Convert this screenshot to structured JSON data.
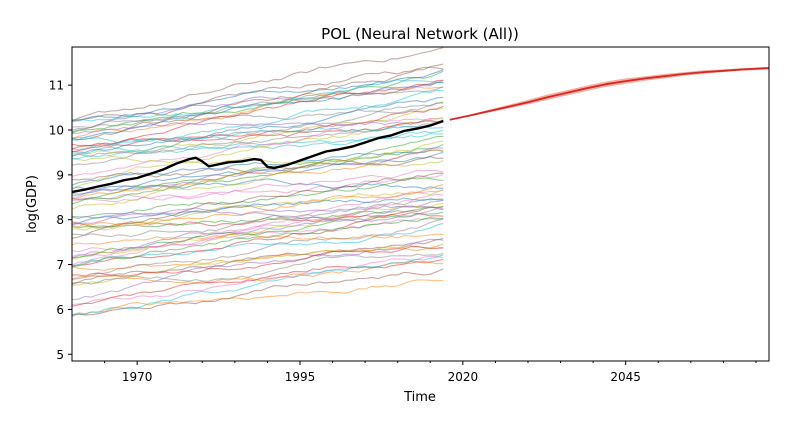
{
  "chart_data": {
    "type": "line",
    "title": "POL (Neural Network (All))",
    "xlabel": "Time",
    "ylabel": "log(GDP)",
    "xlim": [
      1960,
      2067
    ],
    "ylim": [
      4.85,
      11.85
    ],
    "xticks": [
      1970,
      1995,
      2020,
      2045
    ],
    "yticks": [
      5,
      6,
      7,
      8,
      9,
      10,
      11
    ],
    "grid": false,
    "legend": "none",
    "background_series": {
      "description_color_cycle": [
        "#1f77b4",
        "#ff7f0e",
        "#2ca02c",
        "#d62728",
        "#9467bd",
        "#8c564b",
        "#e377c2",
        "#7f7f7f",
        "#bcbd22",
        "#17becf"
      ],
      "x_start": 1960,
      "x_end": 2017,
      "count": 70,
      "start_range": [
        5.8,
        10.3
      ],
      "end_range": [
        6.5,
        11.3
      ]
    },
    "series": [
      {
        "role": "observed",
        "color": "#000000",
        "x": [
          1960,
          1962,
          1964,
          1966,
          1968,
          1970,
          1972,
          1974,
          1976,
          1978,
          1979,
          1980,
          1981,
          1982,
          1984,
          1986,
          1988,
          1989,
          1990,
          1991,
          1993,
          1995,
          1997,
          1999,
          2001,
          2003,
          2005,
          2007,
          2009,
          2011,
          2013,
          2015,
          2017
        ],
        "values": [
          8.62,
          8.67,
          8.74,
          8.8,
          8.88,
          8.93,
          9.02,
          9.12,
          9.25,
          9.35,
          9.38,
          9.3,
          9.19,
          9.22,
          9.28,
          9.3,
          9.35,
          9.33,
          9.18,
          9.15,
          9.22,
          9.32,
          9.42,
          9.52,
          9.57,
          9.63,
          9.72,
          9.82,
          9.88,
          9.98,
          10.03,
          10.1,
          10.2
        ]
      },
      {
        "role": "forecast",
        "color": "#d62728",
        "x": [
          2018,
          2021,
          2024,
          2027,
          2030,
          2033,
          2036,
          2039,
          2042,
          2045,
          2048,
          2051,
          2054,
          2057,
          2060,
          2063,
          2067
        ],
        "values": [
          10.23,
          10.32,
          10.42,
          10.52,
          10.62,
          10.73,
          10.83,
          10.93,
          11.02,
          11.09,
          11.15,
          11.2,
          11.25,
          11.29,
          11.32,
          11.35,
          11.38
        ],
        "band_halfwidth": [
          0.01,
          0.02,
          0.03,
          0.04,
          0.05,
          0.06,
          0.06,
          0.06,
          0.06,
          0.06,
          0.05,
          0.05,
          0.04,
          0.04,
          0.03,
          0.03,
          0.03
        ]
      }
    ]
  }
}
